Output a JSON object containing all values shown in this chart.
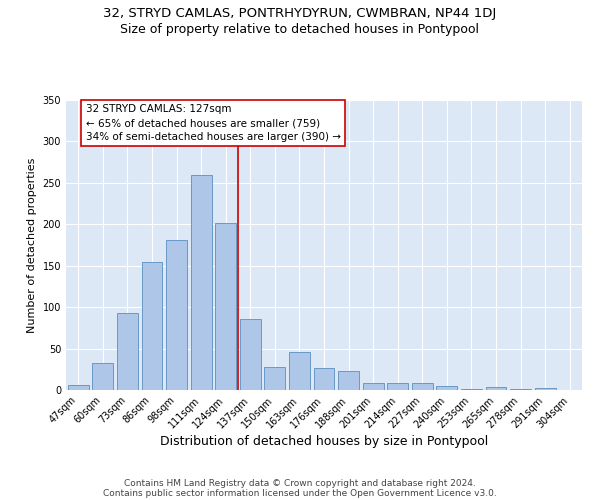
{
  "title_line1": "32, STRYD CAMLAS, PONTRHYDYRUN, CWMBRAN, NP44 1DJ",
  "title_line2": "Size of property relative to detached houses in Pontypool",
  "xlabel": "Distribution of detached houses by size in Pontypool",
  "ylabel": "Number of detached properties",
  "categories": [
    "47sqm",
    "60sqm",
    "73sqm",
    "86sqm",
    "98sqm",
    "111sqm",
    "124sqm",
    "137sqm",
    "150sqm",
    "163sqm",
    "176sqm",
    "188sqm",
    "201sqm",
    "214sqm",
    "227sqm",
    "240sqm",
    "253sqm",
    "265sqm",
    "278sqm",
    "291sqm",
    "304sqm"
  ],
  "values": [
    6,
    33,
    93,
    155,
    181,
    260,
    201,
    86,
    28,
    46,
    27,
    23,
    8,
    9,
    9,
    5,
    1,
    4,
    1,
    3,
    0
  ],
  "bar_color": "#aec6e8",
  "bar_edge_color": "#5a8fc0",
  "vline_index": 6,
  "vline_color": "#cc0000",
  "annotation_text": "32 STRYD CAMLAS: 127sqm\n← 65% of detached houses are smaller (759)\n34% of semi-detached houses are larger (390) →",
  "annotation_box_color": "#ffffff",
  "annotation_box_edge": "#cc0000",
  "ylim": [
    0,
    350
  ],
  "yticks": [
    0,
    50,
    100,
    150,
    200,
    250,
    300,
    350
  ],
  "bg_color": "#dce8f5",
  "footer_line1": "Contains HM Land Registry data © Crown copyright and database right 2024.",
  "footer_line2": "Contains public sector information licensed under the Open Government Licence v3.0.",
  "title_fontsize": 9.5,
  "subtitle_fontsize": 9,
  "xlabel_fontsize": 9,
  "ylabel_fontsize": 8,
  "tick_fontsize": 7,
  "annotation_fontsize": 7.5,
  "footer_fontsize": 6.5
}
